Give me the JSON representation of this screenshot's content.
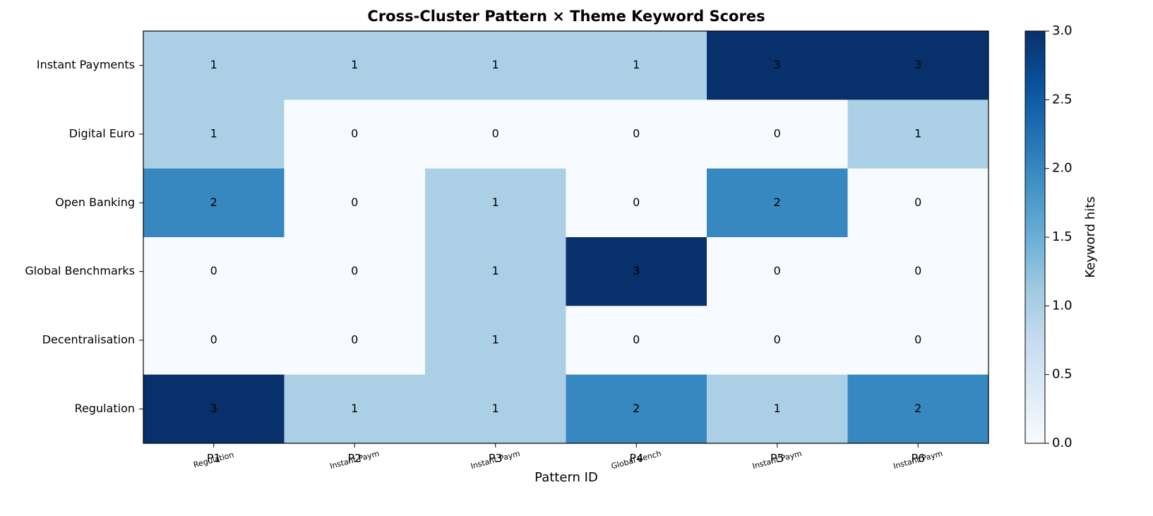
{
  "chart_data": {
    "type": "heatmap",
    "title": "Cross-Cluster Pattern × Theme Keyword Scores",
    "x_label": "Pattern ID",
    "columns": [
      "P1",
      "P2",
      "P3",
      "P4",
      "P5",
      "P6"
    ],
    "column_sublabels": [
      "Regulation",
      "Instant Paym",
      "Instant Paym",
      "Global Bench",
      "Instant Paym",
      "Instant Paym"
    ],
    "rows": [
      "Instant Payments",
      "Digital Euro",
      "Open Banking",
      "Global Benchmarks",
      "Decentralisation",
      "Regulation"
    ],
    "values": [
      [
        1,
        1,
        1,
        1,
        3,
        3
      ],
      [
        1,
        0,
        0,
        0,
        0,
        1
      ],
      [
        2,
        0,
        1,
        0,
        2,
        0
      ],
      [
        0,
        0,
        1,
        3,
        0,
        0
      ],
      [
        0,
        0,
        1,
        0,
        0,
        0
      ],
      [
        3,
        1,
        1,
        2,
        1,
        2
      ]
    ],
    "colorbar_label": "Keyword hits",
    "clim": [
      0,
      3
    ],
    "cticks": [
      {
        "value": 0,
        "label": "0.0"
      },
      {
        "value": 0.5,
        "label": "0.5"
      },
      {
        "value": 1,
        "label": "1.0"
      },
      {
        "value": 1.5,
        "label": "1.5"
      },
      {
        "value": 2,
        "label": "2.0"
      },
      {
        "value": 2.5,
        "label": "2.5"
      },
      {
        "value": 3,
        "label": "3.0"
      }
    ],
    "colorscale": [
      "#f7fbff",
      "#deebf7",
      "#c6dbef",
      "#9ecae1",
      "#6baed6",
      "#4292c6",
      "#2171b5",
      "#08519c",
      "#08306b"
    ]
  }
}
